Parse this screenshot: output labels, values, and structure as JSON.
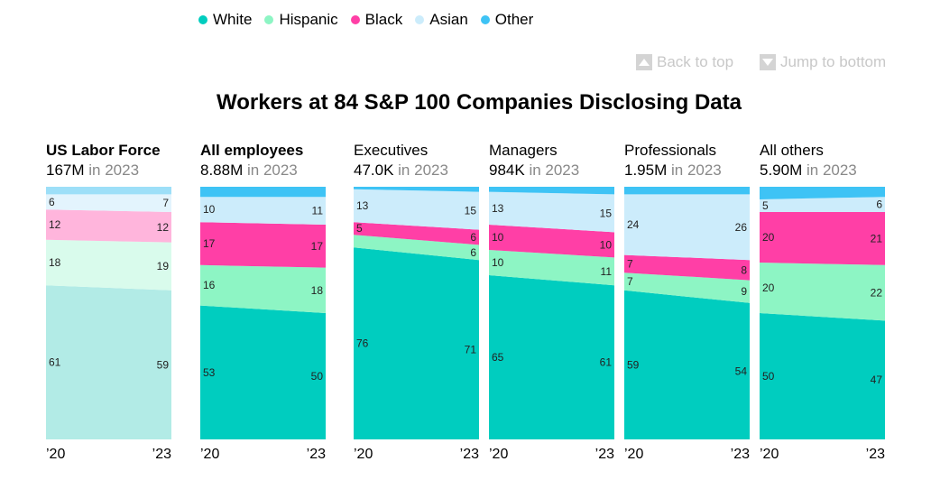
{
  "legend": [
    {
      "label": "White",
      "color": "#00cdbf"
    },
    {
      "label": "Hispanic",
      "color": "#8df5c4"
    },
    {
      "label": "Black",
      "color": "#ff3fa6"
    },
    {
      "label": "Asian",
      "color": "#ccecfb"
    },
    {
      "label": "Other",
      "color": "#3ec3f5"
    }
  ],
  "nav": {
    "back_to_top": "Back to top",
    "jump_to_bottom": "Jump to bottom"
  },
  "chart_data": {
    "type": "area",
    "title": "Workers at 84 S&P 100 Companies Disclosing Data",
    "x_labels": [
      "’20",
      "’23"
    ],
    "series_order": [
      "White",
      "Hispanic",
      "Black",
      "Asian",
      "Other"
    ],
    "panels": [
      {
        "title": "US Labor Force",
        "bold": true,
        "total": "167M",
        "total_suffix": "in 2023",
        "muted": true,
        "values": {
          "2020": [
            61,
            18,
            12,
            6,
            3
          ],
          "2023": [
            59,
            19,
            12,
            7,
            3
          ]
        },
        "labels": {
          "2020": [
            "61",
            "18",
            "12",
            "6",
            ""
          ],
          "2023": [
            "59",
            "19",
            "12",
            "7",
            ""
          ]
        }
      },
      {
        "title": "All employees",
        "bold": true,
        "total": "8.88M",
        "total_suffix": "in 2023",
        "muted": false,
        "values": {
          "2020": [
            53,
            16,
            17,
            10,
            4
          ],
          "2023": [
            50,
            18,
            17,
            11,
            4
          ]
        },
        "labels": {
          "2020": [
            "53",
            "16",
            "17",
            "10",
            ""
          ],
          "2023": [
            "50",
            "18",
            "17",
            "11",
            ""
          ]
        }
      },
      {
        "title": "Executives",
        "bold": false,
        "total": "47.0K",
        "total_suffix": "in 2023",
        "muted": false,
        "values": {
          "2020": [
            76,
            5,
            5,
            13,
            1
          ],
          "2023": [
            71,
            6,
            6,
            15,
            2
          ]
        },
        "labels": {
          "2020": [
            "76",
            "",
            "5",
            "13",
            ""
          ],
          "2023": [
            "71",
            "6",
            "6",
            "15",
            ""
          ]
        }
      },
      {
        "title": "Managers",
        "bold": false,
        "total": "984K",
        "total_suffix": "in 2023",
        "muted": false,
        "values": {
          "2020": [
            65,
            10,
            10,
            13,
            2
          ],
          "2023": [
            61,
            11,
            10,
            15,
            3
          ]
        },
        "labels": {
          "2020": [
            "65",
            "10",
            "10",
            "13",
            ""
          ],
          "2023": [
            "61",
            "11",
            "10",
            "15",
            ""
          ]
        }
      },
      {
        "title": "Professionals",
        "bold": false,
        "total": "1.95M",
        "total_suffix": "in 2023",
        "muted": false,
        "values": {
          "2020": [
            59,
            7,
            7,
            24,
            3
          ],
          "2023": [
            54,
            9,
            8,
            26,
            3
          ]
        },
        "labels": {
          "2020": [
            "59",
            "7",
            "7",
            "24",
            ""
          ],
          "2023": [
            "54",
            "9",
            "8",
            "26",
            ""
          ]
        }
      },
      {
        "title": "All others",
        "bold": false,
        "total": "5.90M",
        "total_suffix": "in 2023",
        "muted": false,
        "values": {
          "2020": [
            50,
            20,
            20,
            5,
            5
          ],
          "2023": [
            47,
            22,
            21,
            6,
            4
          ]
        },
        "labels": {
          "2020": [
            "50",
            "20",
            "20",
            "5",
            ""
          ],
          "2023": [
            "47",
            "22",
            "21",
            "6",
            ""
          ]
        }
      }
    ]
  }
}
